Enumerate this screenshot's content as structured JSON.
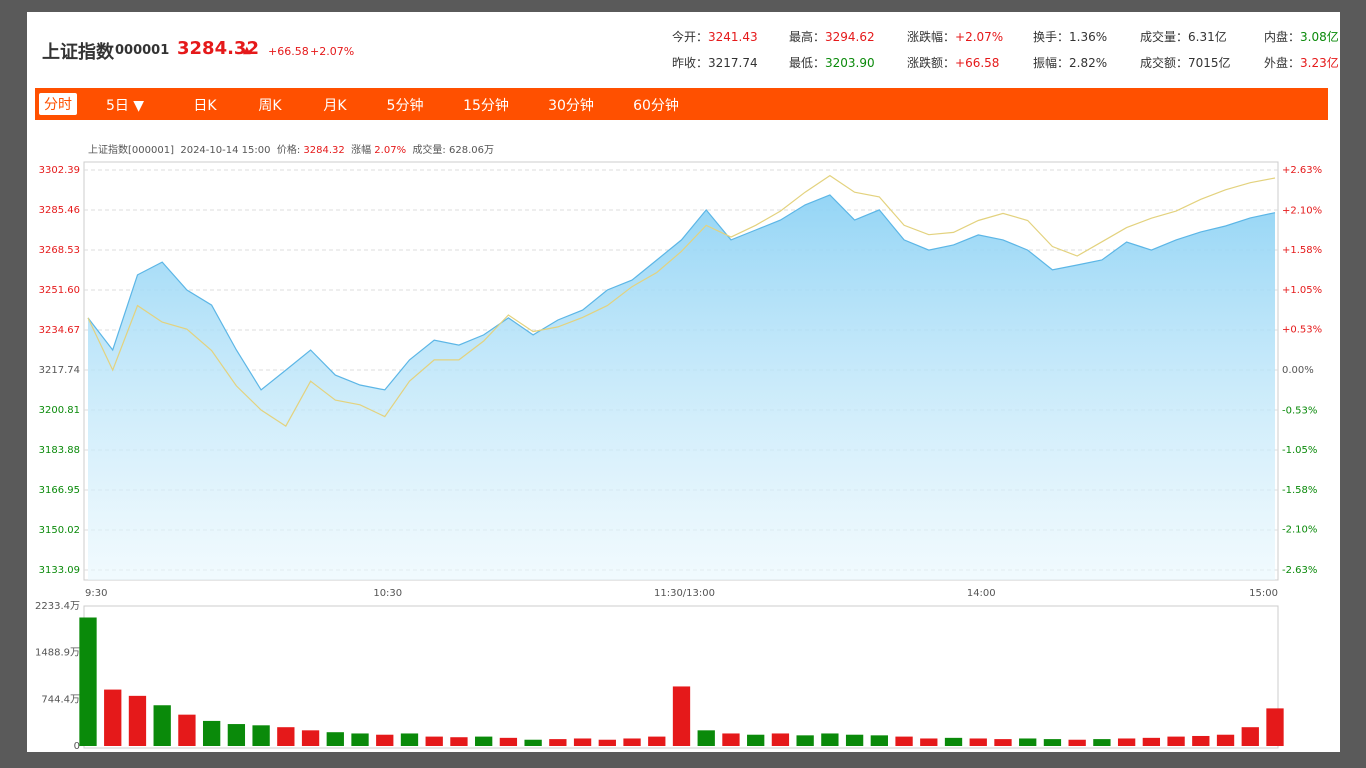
{
  "header": {
    "name": "上证指数",
    "code": "000001",
    "price": "3284.32",
    "arrow": "▲",
    "change": "+66.58",
    "change_pct": "+2.07%",
    "stats": [
      {
        "label": "今开：",
        "value": "3241.43",
        "color": "#e5191a"
      },
      {
        "label": "昨收：",
        "value": "3217.74",
        "color": "#333333"
      },
      {
        "label": "最高：",
        "value": "3294.62",
        "color": "#e5191a"
      },
      {
        "label": "最低：",
        "value": "3203.90",
        "color": "#0a8a0a"
      },
      {
        "label": "涨跌幅：",
        "value": "+2.07%",
        "color": "#e5191a"
      },
      {
        "label": "涨跌额：",
        "value": "+66.58",
        "color": "#e5191a"
      },
      {
        "label": "换手：",
        "value": "1.36%",
        "color": "#333333"
      },
      {
        "label": "振幅：",
        "value": "2.82%",
        "color": "#333333"
      },
      {
        "label": "成交量：",
        "value": "6.31亿",
        "color": "#333333"
      },
      {
        "label": "成交额：",
        "value": "7015亿",
        "color": "#333333"
      },
      {
        "label": "内盘：",
        "value": "3.08亿",
        "color": "#0a8a0a"
      },
      {
        "label": "外盘：",
        "value": "3.23亿",
        "color": "#e5191a"
      }
    ]
  },
  "tabs": [
    "分时",
    "5日 ▼",
    "日K",
    "周K",
    "月K",
    "5分钟",
    "15分钟",
    "30分钟",
    "60分钟"
  ],
  "active_tab": 0,
  "info": {
    "name": "上证指数[000001]",
    "time": "2024-10-14 15:00",
    "price_label": "价格:",
    "price": "3284.32",
    "pct_label": "涨幅",
    "pct": "2.07%",
    "vol_label": "成交量:",
    "vol": "628.06万"
  },
  "chart_data": [
    {
      "type": "area-line",
      "x": [
        0,
        5,
        10,
        15,
        20,
        25,
        30,
        35,
        40,
        45,
        50,
        55,
        60,
        65,
        70,
        75,
        80,
        85,
        90,
        95,
        100,
        105,
        110,
        115,
        120,
        125,
        130,
        135,
        140,
        145,
        150,
        155,
        160,
        165,
        170,
        175,
        180,
        185,
        190,
        195,
        200,
        205,
        210,
        215,
        220,
        225,
        230,
        235,
        240
      ],
      "xlim": [
        0,
        240
      ],
      "xticks": [
        {
          "value": 0,
          "label": "9:30"
        },
        {
          "value": 60,
          "label": "10:30"
        },
        {
          "value": 120,
          "label": "11:30/13:00"
        },
        {
          "value": 180,
          "label": "14:00"
        },
        {
          "value": 240,
          "label": "15:00"
        }
      ],
      "ylim": [
        3133.09,
        3302.39
      ],
      "yticks": [
        3302.39,
        3285.46,
        3268.53,
        {
          "value": 3251.6,
          "label": "3251.60"
        },
        3234.67,
        3217.74,
        3200.81,
        3183.88,
        3166.95,
        3150.02,
        3133.09
      ],
      "y2lim": [
        -2.63,
        2.63
      ],
      "y2ticks": [
        {
          "value": 2.63,
          "label": "+2.63%"
        },
        {
          "value": 2.1,
          "label": "+2.10%"
        },
        {
          "value": 1.58,
          "label": "+1.58%"
        },
        {
          "value": 1.05,
          "label": "+1.05%"
        },
        {
          "value": 0.53,
          "label": "+0.53%"
        },
        {
          "value": 0,
          "label": "0.00%"
        },
        {
          "value": -0.53,
          "label": "-0.53%"
        },
        {
          "value": -1.05,
          "label": "-1.05%"
        },
        {
          "value": -1.58,
          "label": "-1.58%"
        },
        {
          "value": -2.1,
          "label": "-2.10%"
        },
        {
          "value": -2.63,
          "label": "-2.63%"
        }
      ],
      "grid": true,
      "series": [
        {
          "color": "#5cb6e6",
          "fill": "#9fd9f7",
          "values": [
            3239.8,
            3226.2,
            3258,
            3263.4,
            3251.6,
            3245.2,
            3226.2,
            3209.3,
            3217.7,
            3226.2,
            3215.6,
            3211.4,
            3209.3,
            3222,
            3230.4,
            3228.3,
            3232.6,
            3239.8,
            3232.6,
            3238.9,
            3243.1,
            3251.6,
            3255.8,
            3264.3,
            3272.8,
            3285.5,
            3272.8,
            3277,
            3281.2,
            3287.6,
            3291.8,
            3281.2,
            3285.5,
            3272.8,
            3268.5,
            3270.7,
            3274.9,
            3272.8,
            3268.5,
            3260.1,
            3262.2,
            3264.3,
            3271.9,
            3268.5,
            3272.8,
            3276.2,
            3278.7,
            3282.1,
            3284.3
          ]
        },
        {
          "color": "#e3d27e",
          "values": [
            3239.8,
            3217.7,
            3245,
            3238,
            3235,
            3226,
            3211,
            3200.8,
            3194,
            3213,
            3205,
            3203,
            3198,
            3213,
            3222,
            3222,
            3230,
            3241,
            3234,
            3236,
            3240,
            3245,
            3253,
            3259,
            3268,
            3279,
            3274,
            3279,
            3285,
            3293,
            3300,
            3293,
            3291,
            3279,
            3275,
            3276,
            3281,
            3284,
            3281,
            3270,
            3266,
            3272,
            3278,
            3282,
            3285,
            3290,
            3294,
            3297,
            3299
          ]
        }
      ]
    },
    {
      "type": "bar",
      "x": [
        0,
        5,
        10,
        15,
        20,
        25,
        30,
        35,
        40,
        45,
        50,
        55,
        60,
        65,
        70,
        75,
        80,
        85,
        90,
        95,
        100,
        105,
        110,
        115,
        120,
        125,
        130,
        135,
        140,
        145,
        150,
        155,
        160,
        165,
        170,
        175,
        180,
        185,
        190,
        195,
        200,
        205,
        210,
        215,
        220,
        225,
        230,
        235,
        240
      ],
      "xlim": [
        0,
        240
      ],
      "ylim": [
        0,
        2233.4
      ],
      "yticks": [
        {
          "value": 2233.4,
          "label": "2233.4万"
        },
        {
          "value": 1488.9,
          "label": "1488.9万"
        },
        {
          "value": 744.4,
          "label": "744.4万"
        },
        0
      ],
      "values": [
        2050,
        900,
        800,
        650,
        500,
        400,
        350,
        330,
        300,
        250,
        220,
        200,
        180,
        200,
        150,
        140,
        150,
        130,
        100,
        110,
        120,
        100,
        120,
        150,
        950,
        250,
        200,
        180,
        200,
        170,
        200,
        180,
        170,
        150,
        120,
        130,
        120,
        110,
        120,
        110,
        100,
        110,
        120,
        130,
        150,
        160,
        180,
        300,
        600
      ],
      "colors": [
        "#0a8a0a",
        "#e5191a",
        "#e5191a",
        "#0a8a0a",
        "#e5191a",
        "#0a8a0a",
        "#0a8a0a",
        "#0a8a0a",
        "#e5191a",
        "#e5191a",
        "#0a8a0a",
        "#0a8a0a",
        "#e5191a",
        "#0a8a0a",
        "#e5191a",
        "#e5191a",
        "#0a8a0a",
        "#e5191a",
        "#0a8a0a",
        "#e5191a",
        "#e5191a",
        "#e5191a",
        "#e5191a",
        "#e5191a",
        "#e5191a",
        "#0a8a0a",
        "#e5191a",
        "#0a8a0a",
        "#e5191a",
        "#0a8a0a",
        "#0a8a0a",
        "#0a8a0a",
        "#0a8a0a",
        "#e5191a",
        "#e5191a",
        "#0a8a0a",
        "#e5191a",
        "#e5191a",
        "#0a8a0a",
        "#0a8a0a",
        "#e5191a",
        "#0a8a0a",
        "#e5191a",
        "#e5191a",
        "#e5191a",
        "#e5191a",
        "#e5191a",
        "#e5191a",
        "#e5191a"
      ]
    }
  ]
}
